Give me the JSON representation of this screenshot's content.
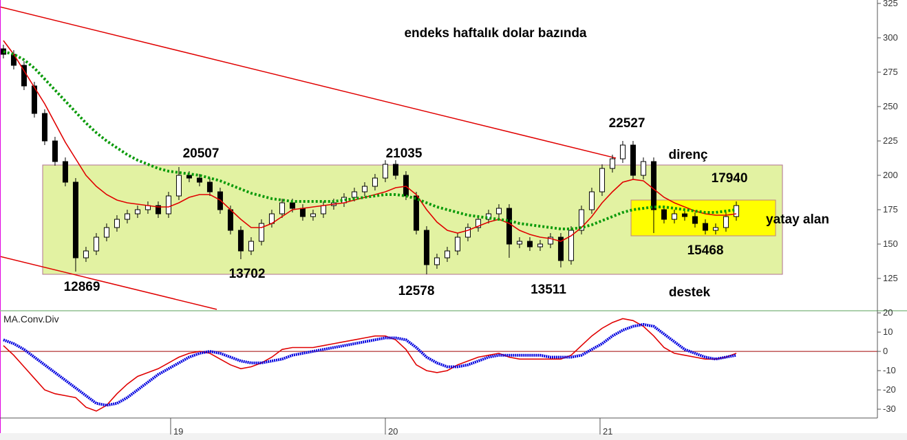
{
  "chart_data": [
    {
      "type": "candlestick",
      "title": "endeks haftalık dolar bazında",
      "ylim": [
        101.5,
        327.5
      ],
      "yticks": [
        125,
        150,
        175,
        200,
        225,
        250,
        275,
        300,
        325
      ],
      "xlim": [
        -0.33,
        84.67
      ],
      "up_color": "#ffffff",
      "down_color": "#000000",
      "candles": [
        [
          292,
          295,
          285,
          288
        ],
        [
          288,
          291,
          277,
          280
        ],
        [
          280,
          283,
          262,
          265
        ],
        [
          265,
          268,
          242,
          245
        ],
        [
          245,
          248,
          222,
          225
        ],
        [
          225,
          228,
          207,
          210
        ],
        [
          210,
          213,
          192,
          195
        ],
        [
          195,
          198,
          130,
          140
        ],
        [
          140,
          148,
          137,
          145
        ],
        [
          145,
          158,
          142,
          155
        ],
        [
          155,
          165,
          152,
          162
        ],
        [
          162,
          171,
          159,
          168
        ],
        [
          168,
          175,
          165,
          172
        ],
        [
          172,
          178,
          169,
          175
        ],
        [
          175,
          181,
          172,
          178
        ],
        [
          178,
          181,
          169,
          172
        ],
        [
          172,
          188,
          169,
          185
        ],
        [
          185,
          206,
          182,
          200
        ],
        [
          200,
          203,
          195,
          198
        ],
        [
          198,
          201,
          192,
          195
        ],
        [
          195,
          198,
          185,
          188
        ],
        [
          188,
          191,
          172,
          175
        ],
        [
          175,
          178,
          157,
          160
        ],
        [
          160,
          163,
          139,
          145
        ],
        [
          145,
          155,
          142,
          152
        ],
        [
          152,
          168,
          149,
          165
        ],
        [
          165,
          175,
          162,
          172
        ],
        [
          172,
          183,
          169,
          180
        ],
        [
          180,
          183,
          173,
          176
        ],
        [
          176,
          179,
          167,
          170
        ],
        [
          170,
          175,
          167,
          172
        ],
        [
          172,
          181,
          169,
          178
        ],
        [
          178,
          183,
          175,
          180
        ],
        [
          180,
          187,
          177,
          184
        ],
        [
          184,
          191,
          181,
          188
        ],
        [
          188,
          195,
          185,
          192
        ],
        [
          192,
          201,
          189,
          198
        ],
        [
          198,
          211,
          195,
          208
        ],
        [
          208,
          211,
          197,
          200
        ],
        [
          200,
          203,
          182,
          185
        ],
        [
          185,
          188,
          157,
          160
        ],
        [
          160,
          163,
          128,
          135
        ],
        [
          135,
          143,
          132,
          140
        ],
        [
          140,
          148,
          137,
          145
        ],
        [
          145,
          158,
          142,
          155
        ],
        [
          155,
          165,
          152,
          162
        ],
        [
          162,
          171,
          159,
          168
        ],
        [
          168,
          175,
          165,
          172
        ],
        [
          172,
          179,
          169,
          176
        ],
        [
          176,
          179,
          140,
          150
        ],
        [
          150,
          155,
          147,
          152
        ],
        [
          152,
          155,
          145,
          148
        ],
        [
          148,
          153,
          145,
          150
        ],
        [
          150,
          158,
          147,
          155
        ],
        [
          155,
          158,
          133,
          138
        ],
        [
          138,
          163,
          135,
          160
        ],
        [
          160,
          178,
          157,
          175
        ],
        [
          175,
          191,
          172,
          188
        ],
        [
          188,
          208,
          185,
          205
        ],
        [
          205,
          215,
          202,
          212
        ],
        [
          212,
          225,
          209,
          222
        ],
        [
          222,
          225,
          197,
          200
        ],
        [
          200,
          213,
          197,
          210
        ],
        [
          210,
          213,
          158,
          175
        ],
        [
          175,
          178,
          165,
          168
        ],
        [
          168,
          175,
          165,
          172
        ],
        [
          172,
          175,
          167,
          170
        ],
        [
          170,
          173,
          162,
          165
        ],
        [
          165,
          168,
          157,
          160
        ],
        [
          160,
          165,
          157,
          162
        ],
        [
          162,
          173,
          159,
          170
        ],
        [
          170,
          181,
          167,
          178
        ]
      ],
      "series": [
        {
          "color": "#e00000",
          "style": "solid",
          "values": [
            298,
            288,
            276,
            264,
            252,
            238,
            224,
            212,
            200,
            192,
            186,
            182,
            180,
            179,
            178,
            177,
            177,
            180,
            184,
            186,
            186,
            182,
            175,
            168,
            162,
            162,
            165,
            170,
            175,
            176,
            177,
            178,
            179,
            180,
            182,
            184,
            186,
            188,
            191,
            192,
            186,
            175,
            166,
            160,
            158,
            160,
            163,
            166,
            168,
            165,
            160,
            157,
            155,
            154,
            152,
            156,
            162,
            170,
            180,
            188,
            195,
            197,
            196,
            190,
            184,
            180,
            177,
            174,
            172,
            171,
            171,
            172
          ]
        },
        {
          "color": "#0a9a0a",
          "style": "dotted",
          "values": [
            290,
            288,
            284,
            278,
            270,
            262,
            254,
            246,
            238,
            231,
            225,
            220,
            215,
            211,
            208,
            205,
            203,
            202,
            201,
            200,
            198,
            196,
            193,
            190,
            187,
            185,
            183,
            182,
            181,
            181,
            181,
            181,
            181,
            182,
            183,
            184,
            185,
            186,
            186,
            185,
            183,
            180,
            177,
            175,
            173,
            171,
            170,
            169,
            168,
            167,
            165,
            164,
            163,
            162,
            161,
            161,
            162,
            164,
            167,
            170,
            173,
            175,
            176,
            177,
            177,
            176,
            175,
            174,
            173,
            173,
            174,
            175
          ]
        }
      ],
      "annotations": [
        "20507",
        "21035",
        "22527",
        "direnç",
        "17940",
        "yatay alan",
        "15468",
        "12869",
        "13702",
        "12578",
        "13511",
        "destek"
      ]
    },
    {
      "type": "line",
      "title": "MA.Conv.Div",
      "ylim": [
        -34.6,
        21.1
      ],
      "yticks": [
        -30,
        -20,
        -10,
        0,
        10,
        20
      ],
      "xlim": [
        -0.33,
        84.67
      ],
      "xticks": [
        {
          "value": 16.2,
          "label": "19"
        },
        {
          "value": 37,
          "label": "20"
        },
        {
          "value": 57.8,
          "label": "21"
        }
      ],
      "series": [
        {
          "color": "#e00000",
          "style": "solid",
          "values": [
            3,
            -2,
            -8,
            -14,
            -20,
            -22,
            -23,
            -24,
            -29,
            -31,
            -28,
            -22,
            -17,
            -13,
            -11,
            -9,
            -6,
            -3,
            -1,
            0,
            -1,
            -4,
            -7,
            -9,
            -8,
            -6,
            -3,
            1,
            2,
            2,
            2,
            3,
            4,
            5,
            6,
            7,
            8,
            8,
            6,
            1,
            -7,
            -10,
            -11,
            -10,
            -7,
            -5,
            -3,
            -2,
            -1,
            -3,
            -4,
            -4,
            -4,
            -4,
            -4,
            -2,
            3,
            8,
            12,
            15,
            17,
            16,
            13,
            8,
            2,
            -1,
            -2,
            -3,
            -4,
            -4,
            -3,
            -1
          ]
        },
        {
          "color": "#0000e0",
          "style": "dotted",
          "values": [
            6,
            4,
            1,
            -3,
            -7,
            -11,
            -15,
            -19,
            -23,
            -27,
            -28,
            -27,
            -24,
            -20,
            -16,
            -12,
            -9,
            -6,
            -3,
            -1,
            0,
            -1,
            -3,
            -5,
            -6,
            -6,
            -5,
            -4,
            -2,
            -1,
            0,
            1,
            2,
            3,
            4,
            5,
            6,
            7,
            7,
            6,
            2,
            -3,
            -6,
            -8,
            -8,
            -7,
            -5,
            -3,
            -2,
            -2,
            -2,
            -2,
            -2,
            -3,
            -3,
            -3,
            -2,
            1,
            4,
            8,
            11,
            13,
            14,
            13,
            9,
            5,
            1,
            -1,
            -3,
            -4,
            -3,
            -2
          ]
        }
      ]
    }
  ]
}
